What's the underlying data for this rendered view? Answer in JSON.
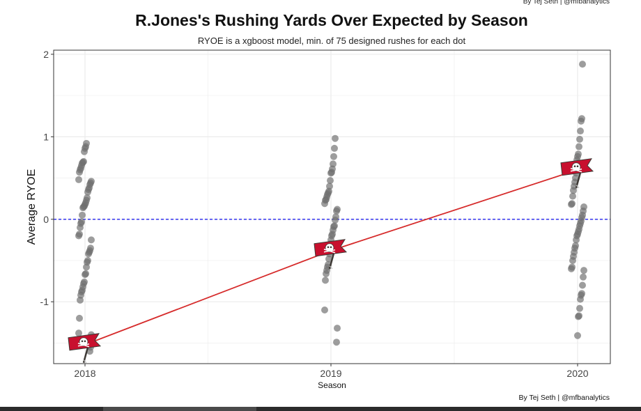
{
  "credits": {
    "top": "By Tej Seth | @mfbanalytics",
    "bottom": "By Tej Seth | @mfbanalytics"
  },
  "colors": {
    "points": "#6e6e6e",
    "trend_line": "#d62b2b",
    "zero_line": "#2222ee",
    "grid": "#ebebeb",
    "logo_red": "#c8102e",
    "logo_pewter": "#3d3935"
  },
  "chart_data": {
    "type": "scatter",
    "title": "R.Jones's Rushing Yards Over Expected by Season",
    "subtitle": "RYOE is a xgboost model, min. of 75 designed rushes for each dot",
    "xlabel": "Season",
    "ylabel": "Average RYOE",
    "categories": [
      "2018",
      "2019",
      "2020"
    ],
    "ylim": [
      -1.75,
      2.05
    ],
    "y_ticks": [
      -1,
      0,
      1,
      2
    ],
    "y_tick_labels": [
      "-1",
      "0",
      "1",
      "2"
    ],
    "grid": true,
    "reference_line": {
      "y": 0,
      "style": "dashed"
    },
    "series": [
      {
        "type": "scatter",
        "points": [
          {
            "x": "2018",
            "y": 0.92
          },
          {
            "x": "2018",
            "y": 0.88
          },
          {
            "x": "2018",
            "y": 0.86
          },
          {
            "x": "2018",
            "y": 0.82
          },
          {
            "x": "2018",
            "y": 0.7
          },
          {
            "x": "2018",
            "y": 0.69
          },
          {
            "x": "2018",
            "y": 0.68
          },
          {
            "x": "2018",
            "y": 0.65
          },
          {
            "x": "2018",
            "y": 0.62
          },
          {
            "x": "2018",
            "y": 0.6
          },
          {
            "x": "2018",
            "y": 0.57
          },
          {
            "x": "2018",
            "y": 0.48
          },
          {
            "x": "2018",
            "y": 0.46
          },
          {
            "x": "2018",
            "y": 0.44
          },
          {
            "x": "2018",
            "y": 0.42
          },
          {
            "x": "2018",
            "y": 0.38
          },
          {
            "x": "2018",
            "y": 0.36
          },
          {
            "x": "2018",
            "y": 0.33
          },
          {
            "x": "2018",
            "y": 0.26
          },
          {
            "x": "2018",
            "y": 0.23
          },
          {
            "x": "2018",
            "y": 0.2
          },
          {
            "x": "2018",
            "y": 0.18
          },
          {
            "x": "2018",
            "y": 0.16
          },
          {
            "x": "2018",
            "y": 0.15
          },
          {
            "x": "2018",
            "y": 0.14
          },
          {
            "x": "2018",
            "y": 0.05
          },
          {
            "x": "2018",
            "y": -0.03
          },
          {
            "x": "2018",
            "y": -0.05
          },
          {
            "x": "2018",
            "y": -0.1
          },
          {
            "x": "2018",
            "y": -0.18
          },
          {
            "x": "2018",
            "y": -0.2
          },
          {
            "x": "2018",
            "y": -0.25
          },
          {
            "x": "2018",
            "y": -0.35
          },
          {
            "x": "2018",
            "y": -0.38
          },
          {
            "x": "2018",
            "y": -0.4
          },
          {
            "x": "2018",
            "y": -0.42
          },
          {
            "x": "2018",
            "y": -0.5
          },
          {
            "x": "2018",
            "y": -0.52
          },
          {
            "x": "2018",
            "y": -0.58
          },
          {
            "x": "2018",
            "y": -0.66
          },
          {
            "x": "2018",
            "y": -0.67
          },
          {
            "x": "2018",
            "y": -0.76
          },
          {
            "x": "2018",
            "y": -0.78
          },
          {
            "x": "2018",
            "y": -0.82
          },
          {
            "x": "2018",
            "y": -0.86
          },
          {
            "x": "2018",
            "y": -0.88
          },
          {
            "x": "2018",
            "y": -0.92
          },
          {
            "x": "2018",
            "y": -0.98
          },
          {
            "x": "2018",
            "y": -1.2
          },
          {
            "x": "2018",
            "y": -1.38
          },
          {
            "x": "2018",
            "y": -1.4
          },
          {
            "x": "2018",
            "y": -1.55
          },
          {
            "x": "2018",
            "y": -1.6
          },
          {
            "x": "2019",
            "y": 0.98
          },
          {
            "x": "2019",
            "y": 0.86
          },
          {
            "x": "2019",
            "y": 0.76
          },
          {
            "x": "2019",
            "y": 0.67
          },
          {
            "x": "2019",
            "y": 0.61
          },
          {
            "x": "2019",
            "y": 0.57
          },
          {
            "x": "2019",
            "y": 0.56
          },
          {
            "x": "2019",
            "y": 0.47
          },
          {
            "x": "2019",
            "y": 0.4
          },
          {
            "x": "2019",
            "y": 0.34
          },
          {
            "x": "2019",
            "y": 0.32
          },
          {
            "x": "2019",
            "y": 0.3
          },
          {
            "x": "2019",
            "y": 0.27
          },
          {
            "x": "2019",
            "y": 0.24
          },
          {
            "x": "2019",
            "y": 0.23
          },
          {
            "x": "2019",
            "y": 0.19
          },
          {
            "x": "2019",
            "y": 0.12
          },
          {
            "x": "2019",
            "y": 0.1
          },
          {
            "x": "2019",
            "y": 0.03
          },
          {
            "x": "2019",
            "y": -0.01
          },
          {
            "x": "2019",
            "y": -0.08
          },
          {
            "x": "2019",
            "y": -0.09
          },
          {
            "x": "2019",
            "y": -0.13
          },
          {
            "x": "2019",
            "y": -0.18
          },
          {
            "x": "2019",
            "y": -0.2
          },
          {
            "x": "2019",
            "y": -0.25
          },
          {
            "x": "2019",
            "y": -0.3
          },
          {
            "x": "2019",
            "y": -0.42
          },
          {
            "x": "2019",
            "y": -0.48
          },
          {
            "x": "2019",
            "y": -0.55
          },
          {
            "x": "2019",
            "y": -0.58
          },
          {
            "x": "2019",
            "y": -0.62
          },
          {
            "x": "2019",
            "y": -0.66
          },
          {
            "x": "2019",
            "y": -0.74
          },
          {
            "x": "2019",
            "y": -1.1
          },
          {
            "x": "2019",
            "y": -1.32
          },
          {
            "x": "2019",
            "y": -1.49
          },
          {
            "x": "2020",
            "y": 1.88
          },
          {
            "x": "2020",
            "y": 1.22
          },
          {
            "x": "2020",
            "y": 1.19
          },
          {
            "x": "2020",
            "y": 1.07
          },
          {
            "x": "2020",
            "y": 0.97
          },
          {
            "x": "2020",
            "y": 0.88
          },
          {
            "x": "2020",
            "y": 0.79
          },
          {
            "x": "2020",
            "y": 0.76
          },
          {
            "x": "2020",
            "y": 0.72
          },
          {
            "x": "2020",
            "y": 0.56
          },
          {
            "x": "2020",
            "y": 0.5
          },
          {
            "x": "2020",
            "y": 0.45
          },
          {
            "x": "2020",
            "y": 0.4
          },
          {
            "x": "2020",
            "y": 0.35
          },
          {
            "x": "2020",
            "y": 0.28
          },
          {
            "x": "2020",
            "y": 0.19
          },
          {
            "x": "2020",
            "y": 0.18
          },
          {
            "x": "2020",
            "y": 0.15
          },
          {
            "x": "2020",
            "y": 0.1
          },
          {
            "x": "2020",
            "y": 0.05
          },
          {
            "x": "2020",
            "y": 0.02
          },
          {
            "x": "2020",
            "y": -0.02
          },
          {
            "x": "2020",
            "y": -0.05
          },
          {
            "x": "2020",
            "y": -0.08
          },
          {
            "x": "2020",
            "y": -0.12
          },
          {
            "x": "2020",
            "y": -0.15
          },
          {
            "x": "2020",
            "y": -0.18
          },
          {
            "x": "2020",
            "y": -0.2
          },
          {
            "x": "2020",
            "y": -0.25
          },
          {
            "x": "2020",
            "y": -0.32
          },
          {
            "x": "2020",
            "y": -0.35
          },
          {
            "x": "2020",
            "y": -0.4
          },
          {
            "x": "2020",
            "y": -0.45
          },
          {
            "x": "2020",
            "y": -0.5
          },
          {
            "x": "2020",
            "y": -0.58
          },
          {
            "x": "2020",
            "y": -0.6
          },
          {
            "x": "2020",
            "y": -0.62
          },
          {
            "x": "2020",
            "y": -0.7
          },
          {
            "x": "2020",
            "y": -0.8
          },
          {
            "x": "2020",
            "y": -0.9
          },
          {
            "x": "2020",
            "y": -0.92
          },
          {
            "x": "2020",
            "y": -0.97
          },
          {
            "x": "2020",
            "y": -1.08
          },
          {
            "x": "2020",
            "y": -1.17
          },
          {
            "x": "2020",
            "y": -1.18
          },
          {
            "x": "2020",
            "y": -1.41
          }
        ]
      },
      {
        "type": "line",
        "points": [
          {
            "x": "2018",
            "y": -1.52
          },
          {
            "x": "2019",
            "y": -0.38
          },
          {
            "x": "2020",
            "y": 0.6
          }
        ],
        "marker": "team-logo"
      }
    ]
  }
}
